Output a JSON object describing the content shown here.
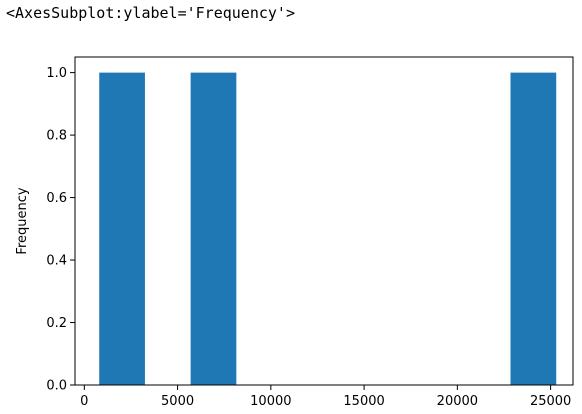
{
  "output_repr": "<AxesSubplot:ylabel='Frequency'>",
  "chart_data": {
    "type": "bar",
    "subtype": "histogram",
    "title": "",
    "xlabel": "",
    "ylabel": "Frequency",
    "bar_color": "#1f77b4",
    "xlim": [
      -500,
      26200
    ],
    "ylim": [
      0,
      1.05
    ],
    "xticks": [
      0,
      5000,
      10000,
      15000,
      20000,
      25000
    ],
    "yticks": [
      0.0,
      0.2,
      0.4,
      0.6,
      0.8,
      1.0
    ],
    "ytick_labels": [
      "0.0",
      "0.2",
      "0.4",
      "0.6",
      "0.8",
      "1.0"
    ],
    "grid": false,
    "bins": [
      {
        "start": 800,
        "end": 3250,
        "count": 1
      },
      {
        "start": 3250,
        "end": 5700,
        "count": 0
      },
      {
        "start": 5700,
        "end": 8150,
        "count": 1
      },
      {
        "start": 8150,
        "end": 10600,
        "count": 0
      },
      {
        "start": 10600,
        "end": 13050,
        "count": 0
      },
      {
        "start": 13050,
        "end": 15500,
        "count": 0
      },
      {
        "start": 15500,
        "end": 17950,
        "count": 0
      },
      {
        "start": 17950,
        "end": 20400,
        "count": 0
      },
      {
        "start": 20400,
        "end": 22850,
        "count": 0
      },
      {
        "start": 22850,
        "end": 25300,
        "count": 1
      }
    ]
  }
}
